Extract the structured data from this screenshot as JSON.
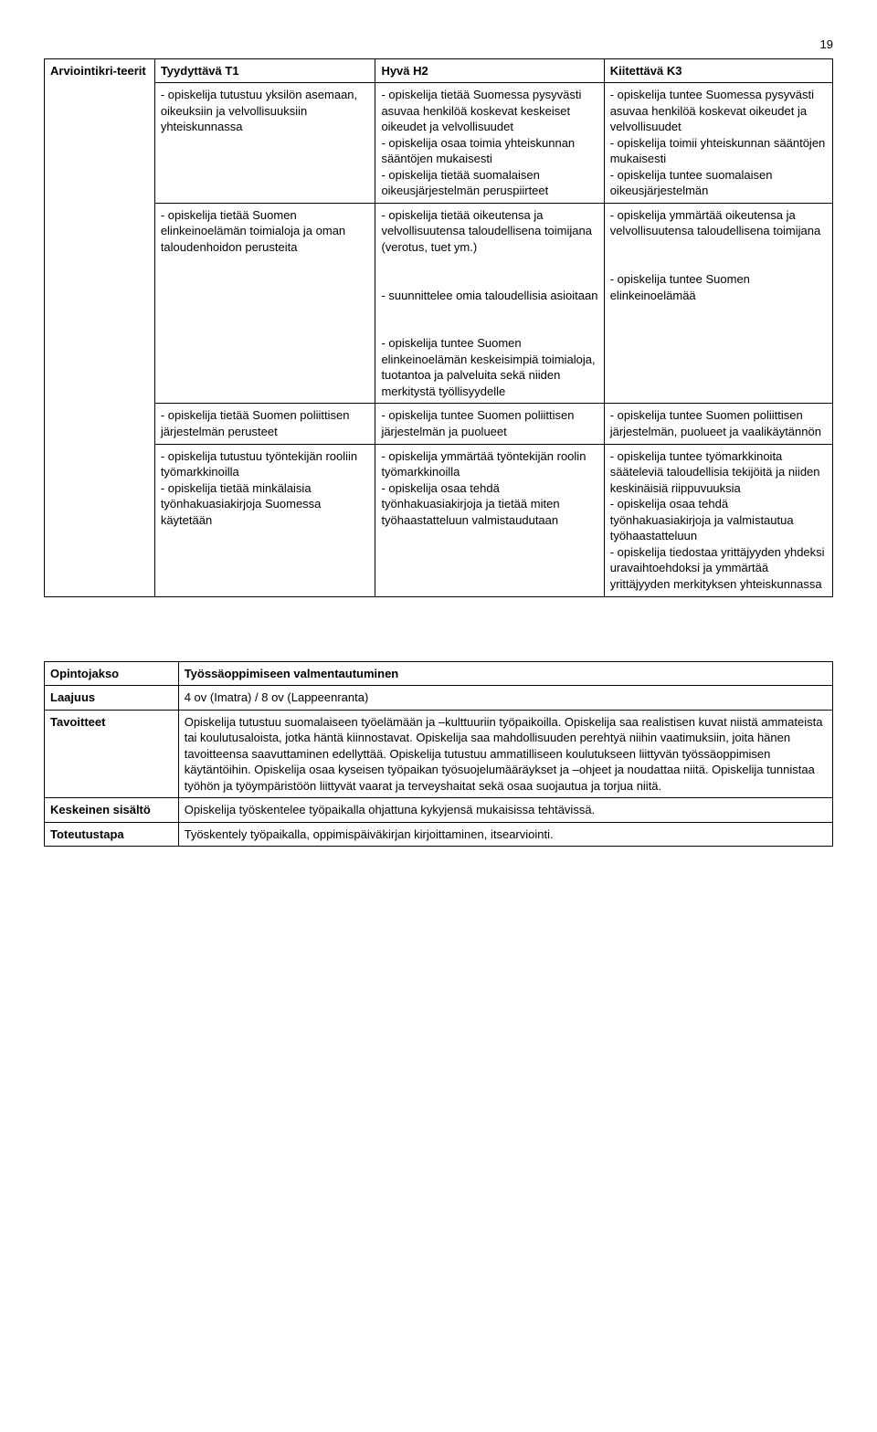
{
  "page_number": "19",
  "table1": {
    "r0c0": "Arviointikri-teerit",
    "r0c1": "Tyydyttävä T1",
    "r0c2": "Hyvä H2",
    "r0c3": "Kiitettävä K3",
    "r1c1": "- opiskelija tutustuu yksilön asemaan, oikeuksiin ja velvollisuuksiin yhteiskunnassa",
    "r1c2": "- opiskelija tietää Suomessa pysyvästi asuvaa henkilöä koskevat keskeiset oikeudet ja velvollisuudet\n- opiskelija osaa toimia yhteiskunnan sääntöjen mukaisesti\n- opiskelija tietää suomalaisen oikeusjärjestelmän peruspiirteet",
    "r1c3": "- opiskelija tuntee Suomessa pysyvästi asuvaa henkilöä koskevat oikeudet ja velvollisuudet\n- opiskelija toimii yhteiskunnan sääntöjen mukaisesti\n- opiskelija tuntee suomalaisen oikeusjärjestelmän",
    "r2c1": "- opiskelija tietää Suomen elinkeinoelämän toimialoja ja oman taloudenhoidon perusteita",
    "r2c2": "- opiskelija tietää oikeutensa ja velvollisuutensa taloudellisena toimijana (verotus, tuet ym.)\n\n- suunnittelee omia taloudellisia asioitaan\n\n- opiskelija tuntee Suomen elinkeinoelämän keskeisimpiä toimialoja, tuotantoa ja palveluita sekä niiden merkitystä työllisyydelle",
    "r2c3": "- opiskelija ymmärtää oikeutensa ja velvollisuutensa taloudellisena toimijana\n\n- opiskelija tuntee Suomen elinkeinoelämää",
    "r3c1": "- opiskelija tietää Suomen poliittisen järjestelmän perusteet",
    "r3c2": "- opiskelija tuntee Suomen poliittisen järjestelmän ja puolueet",
    "r3c3": "- opiskelija tuntee Suomen poliittisen järjestelmän, puolueet ja vaalikäytännön",
    "r4c1": "- opiskelija tutustuu työntekijän rooliin työmarkkinoilla\n- opiskelija tietää minkälaisia työnhakuasiakirjoja Suomessa käytetään",
    "r4c2": "- opiskelija ymmärtää työntekijän roolin työmarkkinoilla\n- opiskelija osaa tehdä työnhakuasiakirjoja ja tietää miten työhaastatteluun valmistaudutaan",
    "r4c3": "- opiskelija tuntee työmarkkinoita sääteleviä taloudellisia tekijöitä ja niiden keskinäisiä riippuvuuksia\n- opiskelija osaa tehdä työnhakuasiakirjoja ja valmistautua työhaastatteluun\n- opiskelija tiedostaa yrittäjyyden yhdeksi uravaihtoehdoksi ja ymmärtää yrittäjyyden merkityksen yhteiskunnassa"
  },
  "table2": {
    "r0c0": "Opintojakso",
    "r0c1": "Työssäoppimiseen valmentautuminen",
    "r1c0": "Laajuus",
    "r1c1": "4 ov (Imatra) / 8 ov (Lappeenranta)",
    "r2c0": "Tavoitteet",
    "r2c1": "Opiskelija tutustuu suomalaiseen työelämään ja –kulttuuriin työpaikoilla. Opiskelija saa realistisen kuvat niistä ammateista tai koulutusaloista, jotka häntä kiinnostavat. Opiskelija saa mahdollisuuden perehtyä niihin vaatimuksiin, joita hänen tavoitteensa saavuttaminen edellyttää. Opiskelija tutustuu ammatilliseen koulutukseen liittyvän työssäoppimisen käytäntöihin. Opiskelija osaa kyseisen työpaikan työsuojelumääräykset ja –ohjeet ja noudattaa niitä. Opiskelija tunnistaa työhön ja työympäristöön liittyvät vaarat ja terveyshaitat sekä osaa suojautua ja torjua niitä.",
    "r3c0": "Keskeinen sisältö",
    "r3c1": "Opiskelija työskentelee työpaikalla ohjattuna kykyjensä mukaisissa tehtävissä.",
    "r4c0": "Toteutustapa",
    "r4c1": "Työskentely työpaikalla, oppimispäiväkirjan kirjoittaminen, itsearviointi."
  }
}
